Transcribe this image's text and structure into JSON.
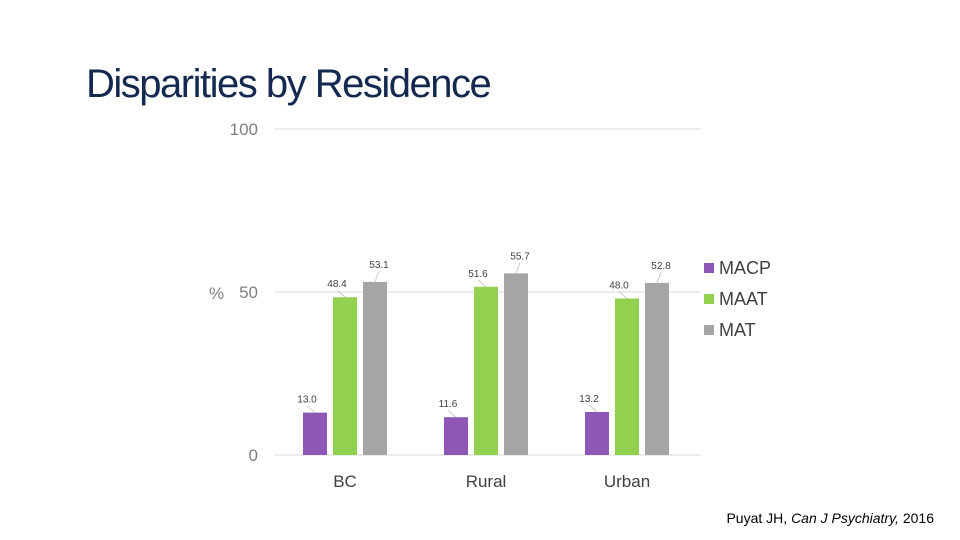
{
  "chart_data": {
    "type": "bar",
    "title": "Disparities by Residence",
    "ylabel": "%",
    "xlabel": "",
    "ylim": [
      0,
      100
    ],
    "yticks": [
      0,
      50,
      100
    ],
    "ytick_labels": [
      "0",
      "50",
      "100"
    ],
    "categories": [
      "BC",
      "Rural",
      "Urban"
    ],
    "series": [
      {
        "name": "MACP",
        "color": "#8e57b5",
        "values": [
          13.0,
          11.6,
          13.2
        ],
        "labels": [
          "13.0",
          "11.6",
          "13.2"
        ]
      },
      {
        "name": "MAAT",
        "color": "#92d050",
        "values": [
          48.4,
          51.6,
          48.0
        ],
        "labels": [
          "48.4",
          "51.6",
          "48.0"
        ]
      },
      {
        "name": "MAT",
        "color": "#a5a5a5",
        "values": [
          53.1,
          55.7,
          52.8
        ],
        "labels": [
          "53.1",
          "55.7",
          "52.8"
        ]
      }
    ],
    "legend": "right",
    "grid": true
  },
  "citation": {
    "author": "Puyat JH, ",
    "journal": "Can J Psychiatry,",
    "year": " 2016"
  },
  "colors": {
    "gridline": "#d9d9d9",
    "title": "#14294f"
  }
}
